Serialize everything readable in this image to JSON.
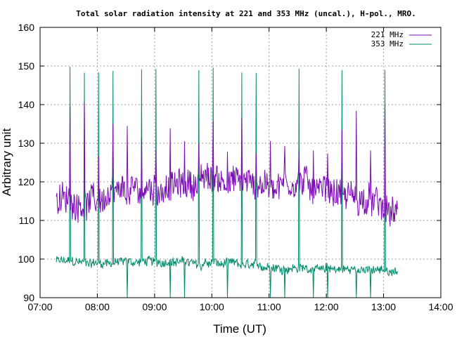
{
  "chart_data": {
    "type": "line",
    "title": "Total solar radiation intensity at 221 and 353 MHz (uncal.), H-pol., MRO.",
    "xlabel": "Time (UT)",
    "ylabel": "Arbitrary unit",
    "xlim": [
      "07:00",
      "14:00"
    ],
    "ylim": [
      90,
      160
    ],
    "x_ticks": [
      "07:00",
      "08:00",
      "09:00",
      "10:00",
      "11:00",
      "12:00",
      "13:00",
      "14:00"
    ],
    "y_ticks": [
      90,
      100,
      110,
      120,
      130,
      140,
      150,
      160
    ],
    "grid": true,
    "legend_position": "top-right",
    "time_range": [
      "07:17",
      "13:15"
    ],
    "calibration_period_minutes": 15,
    "series": [
      {
        "name": "221 MHz",
        "color": "#7b0cb4",
        "baseline_trend": [
          {
            "x": "07:17",
            "y": 115
          },
          {
            "x": "08:00",
            "y": 115
          },
          {
            "x": "08:45",
            "y": 118
          },
          {
            "x": "09:30",
            "y": 119
          },
          {
            "x": "10:00",
            "y": 121
          },
          {
            "x": "10:30",
            "y": 120
          },
          {
            "x": "11:00",
            "y": 119
          },
          {
            "x": "11:30",
            "y": 120
          },
          {
            "x": "12:00",
            "y": 118
          },
          {
            "x": "12:30",
            "y": 116
          },
          {
            "x": "13:00",
            "y": 113
          },
          {
            "x": "13:15",
            "y": 111
          }
        ],
        "calibration_levels": [
          126,
          141
        ]
      },
      {
        "name": "353 MHz",
        "color": "#008b6b",
        "baseline_trend": [
          {
            "x": "07:17",
            "y": 99.5
          },
          {
            "x": "08:00",
            "y": 99
          },
          {
            "x": "09:00",
            "y": 99.5
          },
          {
            "x": "10:00",
            "y": 99
          },
          {
            "x": "11:00",
            "y": 98
          },
          {
            "x": "12:00",
            "y": 97.5
          },
          {
            "x": "13:00",
            "y": 97
          },
          {
            "x": "13:15",
            "y": 97
          }
        ],
        "calibration_levels": [
          90,
          150
        ]
      }
    ]
  }
}
